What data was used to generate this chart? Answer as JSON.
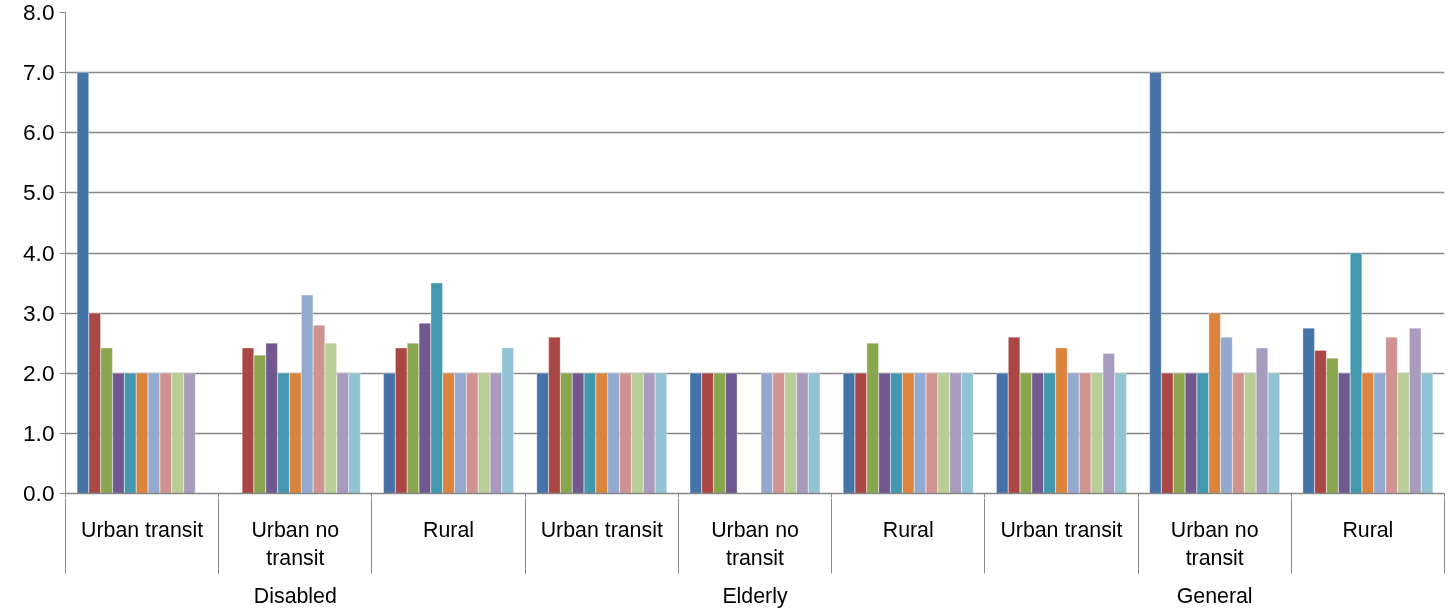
{
  "chart_data": {
    "type": "bar",
    "categories": [
      "Urban transit",
      "Urban no transit",
      "Rural",
      "Urban transit",
      "Urban no transit",
      "Rural",
      "Urban transit",
      "Urban no transit",
      "Rural"
    ],
    "annotations": [
      "Disabled",
      "Elderly",
      "General"
    ],
    "series": [
      {
        "color": "#4572a7",
        "values": [
          7.0,
          null,
          2.0,
          2.0,
          2.0,
          2.0,
          2.0,
          7.0,
          2.75
        ]
      },
      {
        "color": "#aa4643",
        "values": [
          3.0,
          2.42,
          2.42,
          2.6,
          2.0,
          2.0,
          2.6,
          2.0,
          2.38
        ]
      },
      {
        "color": "#89a54e",
        "values": [
          2.42,
          2.3,
          2.5,
          2.0,
          2.0,
          2.5,
          2.0,
          2.0,
          2.25
        ]
      },
      {
        "color": "#71588f",
        "values": [
          2.0,
          2.5,
          2.83,
          2.0,
          2.0,
          2.0,
          2.0,
          2.0,
          2.0
        ]
      },
      {
        "color": "#4198af",
        "values": [
          2.0,
          2.0,
          3.5,
          2.0,
          null,
          2.0,
          2.0,
          2.0,
          4.0
        ]
      },
      {
        "color": "#db843d",
        "values": [
          2.0,
          2.0,
          2.0,
          2.0,
          null,
          2.0,
          2.42,
          3.0,
          2.0
        ]
      },
      {
        "color": "#93a9cf",
        "values": [
          2.0,
          3.3,
          2.0,
          2.0,
          2.0,
          2.0,
          2.0,
          2.6,
          2.0
        ]
      },
      {
        "color": "#d19392",
        "values": [
          2.0,
          2.8,
          2.0,
          2.0,
          2.0,
          2.0,
          2.0,
          2.0,
          2.6
        ]
      },
      {
        "color": "#b9cd96",
        "values": [
          2.0,
          2.5,
          2.0,
          2.0,
          2.0,
          2.0,
          2.0,
          2.0,
          2.0
        ]
      },
      {
        "color": "#a99bbd",
        "values": [
          2.0,
          2.0,
          2.0,
          2.0,
          2.0,
          2.0,
          2.33,
          2.42,
          2.75
        ]
      },
      {
        "color": "#92c3d5",
        "values": [
          null,
          2.0,
          2.42,
          2.0,
          2.0,
          2.0,
          2.0,
          2.0,
          2.0
        ]
      }
    ],
    "ylim": [
      0,
      8
    ],
    "yticks": [
      {
        "value": 0,
        "label": "0.0"
      },
      {
        "value": 1,
        "label": "1.0"
      },
      {
        "value": 2,
        "label": "2.0"
      },
      {
        "value": 3,
        "label": "3.0"
      },
      {
        "value": 4,
        "label": "4.0"
      },
      {
        "value": 5,
        "label": "5.0"
      },
      {
        "value": 6,
        "label": "6.0"
      },
      {
        "value": 7,
        "label": "7.0"
      },
      {
        "value": 8,
        "label": "8.0"
      }
    ],
    "grid": "y"
  }
}
